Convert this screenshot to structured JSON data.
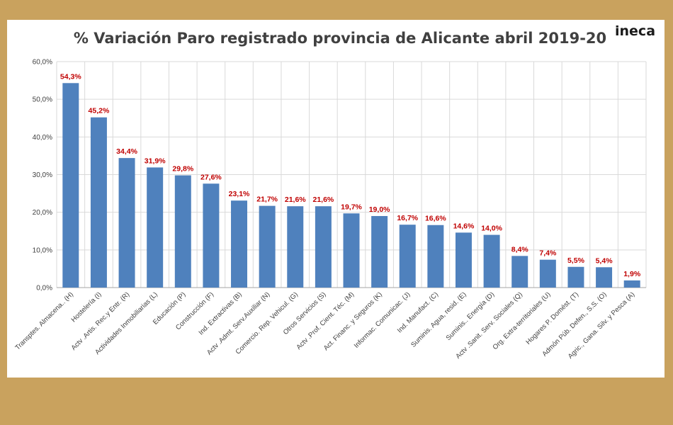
{
  "brand": {
    "logo_text": "ineca"
  },
  "colors": {
    "frame": "#c9a25e",
    "bar": "#4f81bd",
    "label": "#c00000",
    "grid": "#d9d9d9"
  },
  "chart_data": {
    "type": "bar",
    "title": "% Variación Paro registrado provincia de Alicante abril 2019-20",
    "xlabel": "",
    "ylabel": "",
    "ylim": [
      0,
      60
    ],
    "yticks": [
      0,
      10,
      20,
      30,
      40,
      50,
      60
    ],
    "ytick_labels": [
      "0,0%",
      "10,0%",
      "20,0%",
      "30,0%",
      "40,0%",
      "50,0%",
      "60,0%"
    ],
    "grid": true,
    "categories": [
      "Transptes. Almacena.. (H)",
      "Hostelería (I)",
      "Actv .Artis. Rec.y Entr. (R)",
      "Actividades Inmobiliarias (L)",
      "Educación (P)",
      "Construcción (F)",
      "Ind. Extractivas (B)",
      "Actv .Admt. Serv.Auxiliar (N)",
      "Comercio. Rep. Vehicul. (G)",
      "Otros Servicios (S)",
      "Actv .Prof. Cient. Téc. (M)",
      "Act. Financ. y Seguros (K)",
      "Informac. Comunicac. (J)",
      "Ind. Manufact.  (C)",
      "Suminis. Agua, resid. (E)",
      "Suminis.. Energía (D)",
      "Actv .Sanit. Serv. Sociales (Q)",
      "Org. Extra-territoriales (U)",
      "Hogares P. Domést. (T)",
      "Admón Púb. Defen., S.S. (O)",
      "Agric., Gana. Silv. y Pesca (A)"
    ],
    "values": [
      54.3,
      45.2,
      34.4,
      31.9,
      29.8,
      27.6,
      23.1,
      21.7,
      21.6,
      21.6,
      19.7,
      19.0,
      16.7,
      16.6,
      14.6,
      14.0,
      8.4,
      7.4,
      5.5,
      5.4,
      1.9
    ],
    "value_labels": [
      "54,3%",
      "45,2%",
      "34,4%",
      "31,9%",
      "29,8%",
      "27,6%",
      "23,1%",
      "21,7%",
      "21,6%",
      "21,6%",
      "19,7%",
      "19,0%",
      "16,7%",
      "16,6%",
      "14,6%",
      "14,0%",
      "8,4%",
      "7,4%",
      "5,5%",
      "5,4%",
      "1,9%"
    ]
  }
}
